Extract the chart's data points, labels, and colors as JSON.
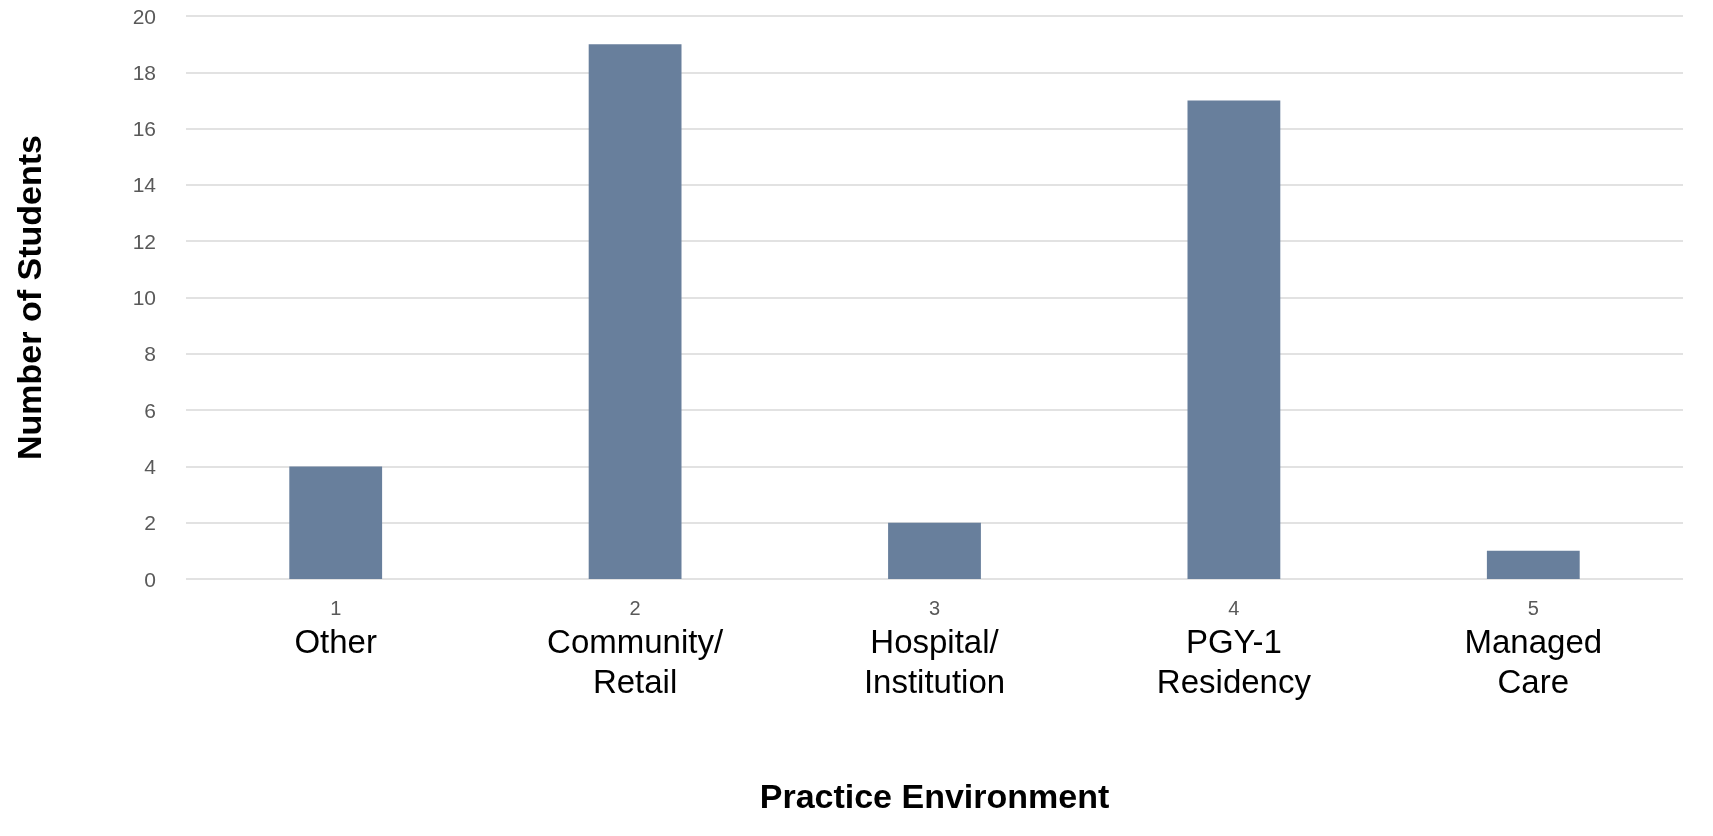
{
  "chart_data": {
    "type": "bar",
    "xlabel": "Practice Environment",
    "ylabel": "Number of Students",
    "categories": [
      "1\nOther",
      "2\nCommunity/\nRetail",
      "3\nHospital/\nInstitution",
      "4\nPGY-1\nResidency",
      "5\nManaged\nCare"
    ],
    "values": [
      4,
      19,
      2,
      17,
      1
    ],
    "color": "#687f9c",
    "ylim": [
      0,
      20
    ],
    "yticks": [
      0,
      2,
      4,
      6,
      8,
      10,
      12,
      14,
      16,
      18,
      20
    ],
    "grid": "y"
  }
}
